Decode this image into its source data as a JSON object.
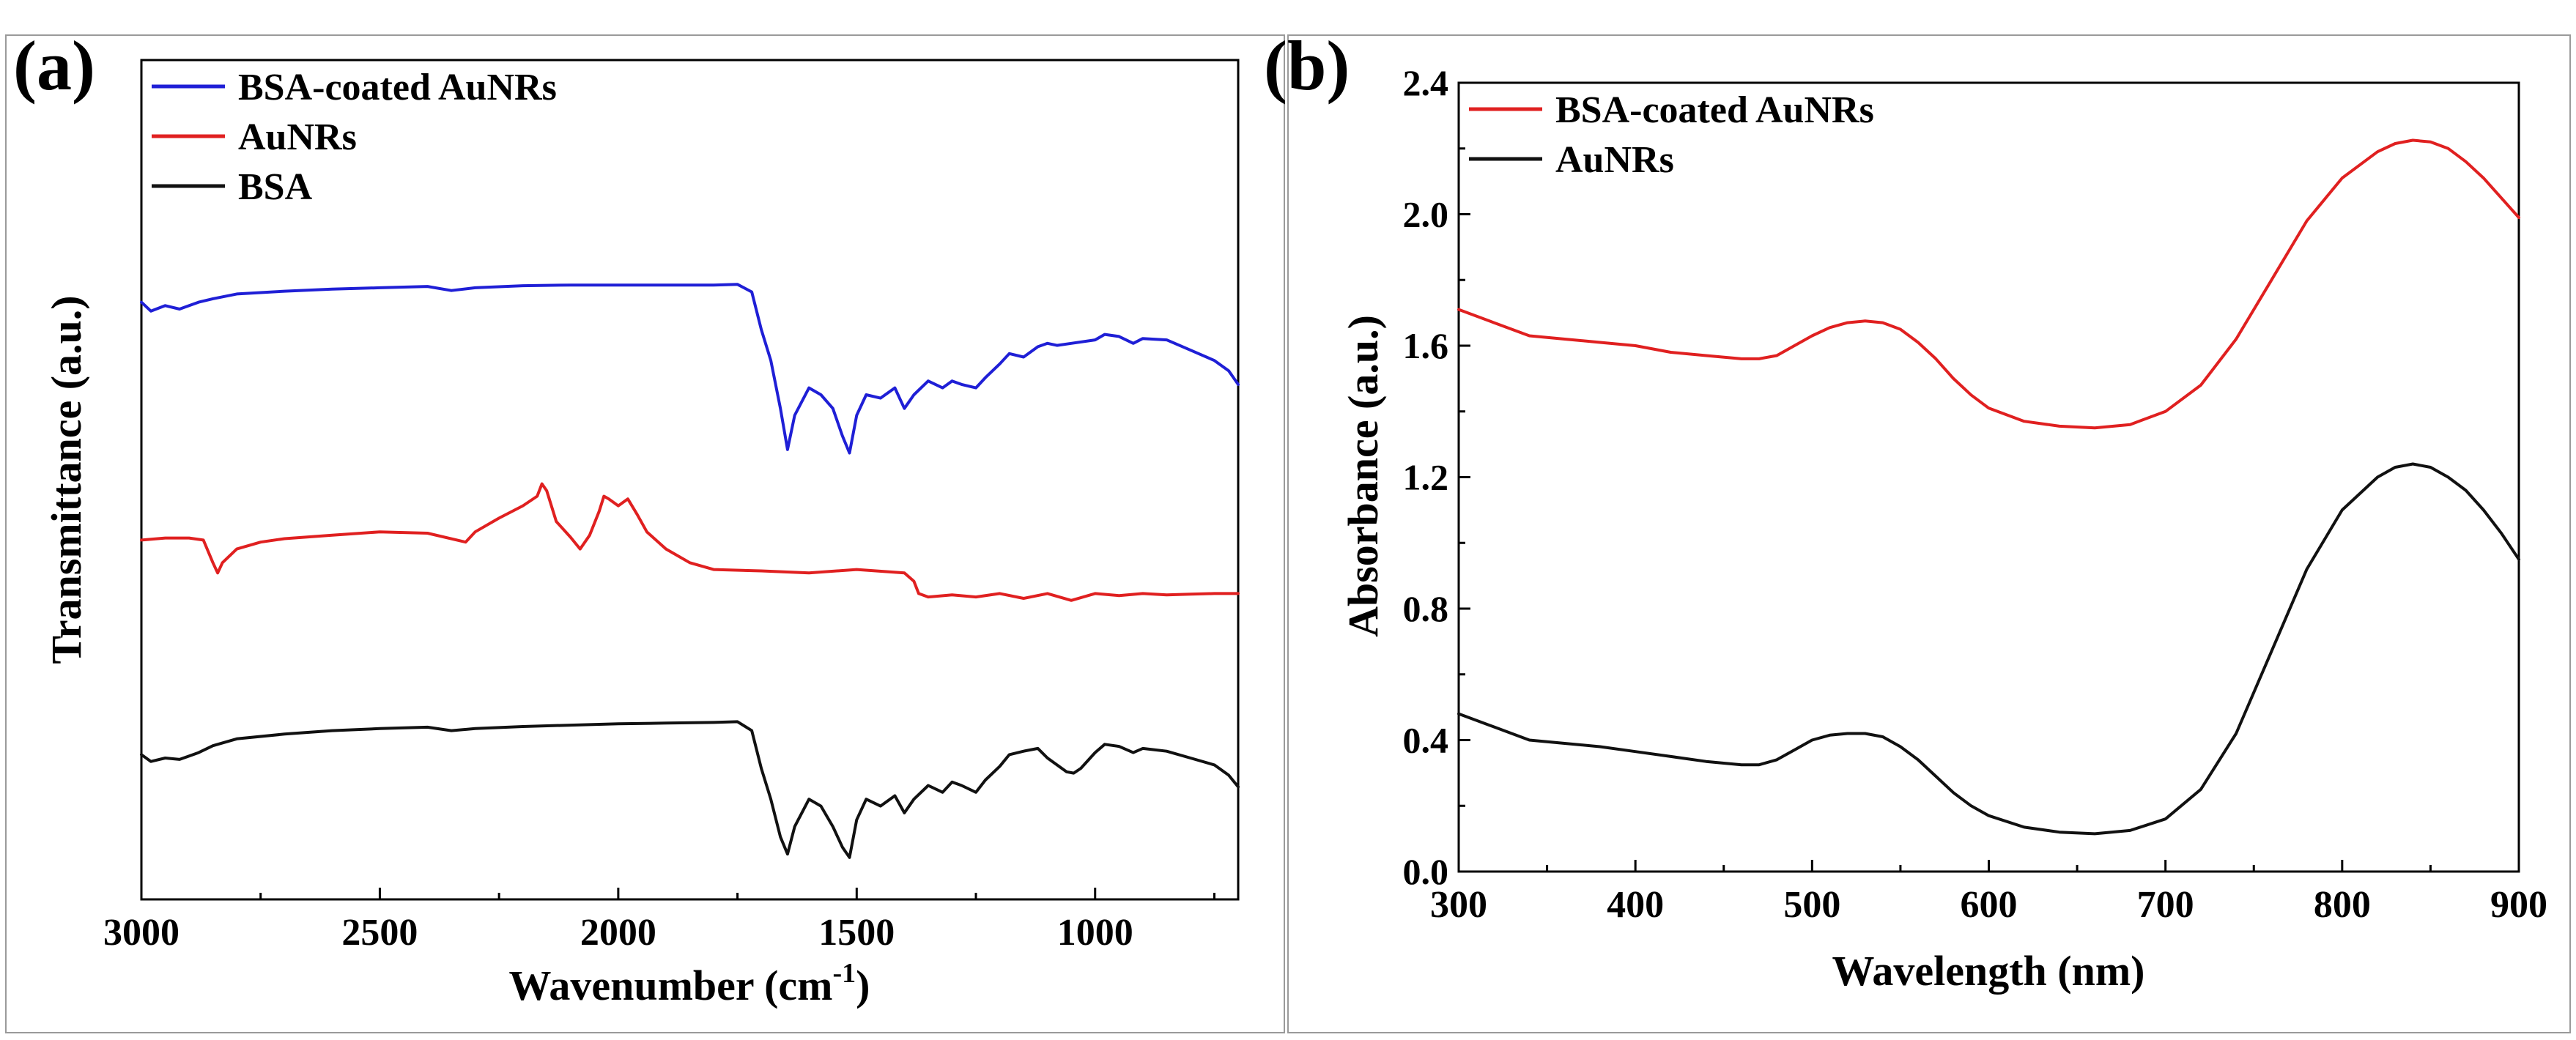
{
  "chart_data": [
    {
      "panel_label": "(a)",
      "type": "line",
      "title": "",
      "xlabel": "Wavenumber (cm",
      "xlabel_sup": "-1",
      "xlabel_end": ")",
      "ylabel": "Transmittance (a.u.)",
      "xlim": [
        3000,
        700
      ],
      "ylim": [
        0,
        1
      ],
      "x_reversed": true,
      "y_ticks_shown": false,
      "xticks": [
        "3000",
        "2500",
        "2000",
        "1500",
        "1000"
      ],
      "xtick_values": [
        3000,
        2500,
        2000,
        1500,
        1000
      ],
      "legend_position": "top-left",
      "legend": [
        "BSA-coated AuNRs",
        "AuNRs",
        "BSA"
      ],
      "series": [
        {
          "name": "BSA-coated AuNRs",
          "color": "#1f1fd6",
          "x": [
            3000,
            2980,
            2950,
            2920,
            2880,
            2850,
            2800,
            2700,
            2600,
            2500,
            2400,
            2350,
            2300,
            2200,
            2100,
            2000,
            1900,
            1800,
            1750,
            1720,
            1700,
            1680,
            1660,
            1645,
            1630,
            1600,
            1575,
            1550,
            1530,
            1515,
            1500,
            1480,
            1450,
            1420,
            1400,
            1380,
            1350,
            1320,
            1300,
            1280,
            1250,
            1230,
            1200,
            1180,
            1150,
            1120,
            1100,
            1080,
            1050,
            1000,
            980,
            950,
            920,
            900,
            850,
            800,
            750,
            720,
            700
          ],
          "y": [
            0.775,
            0.762,
            0.77,
            0.765,
            0.775,
            0.78,
            0.787,
            0.791,
            0.794,
            0.796,
            0.798,
            0.792,
            0.796,
            0.799,
            0.8,
            0.8,
            0.8,
            0.8,
            0.801,
            0.79,
            0.735,
            0.69,
            0.62,
            0.56,
            0.61,
            0.65,
            0.64,
            0.62,
            0.58,
            0.555,
            0.61,
            0.64,
            0.635,
            0.65,
            0.62,
            0.64,
            0.66,
            0.65,
            0.66,
            0.655,
            0.65,
            0.665,
            0.685,
            0.7,
            0.695,
            0.71,
            0.715,
            0.712,
            0.715,
            0.72,
            0.728,
            0.725,
            0.715,
            0.722,
            0.72,
            0.705,
            0.69,
            0.675,
            0.655
          ]
        },
        {
          "name": "AuNRs",
          "color": "#e02020",
          "x": [
            3000,
            2950,
            2900,
            2870,
            2850,
            2840,
            2830,
            2800,
            2750,
            2700,
            2600,
            2500,
            2400,
            2320,
            2300,
            2250,
            2200,
            2170,
            2160,
            2150,
            2130,
            2100,
            2080,
            2060,
            2040,
            2030,
            2020,
            2000,
            1980,
            1960,
            1940,
            1900,
            1850,
            1800,
            1700,
            1600,
            1500,
            1400,
            1380,
            1370,
            1350,
            1300,
            1250,
            1200,
            1150,
            1100,
            1050,
            1000,
            950,
            900,
            850,
            800,
            750,
            700
          ],
          "y": [
            0.428,
            0.431,
            0.431,
            0.428,
            0.395,
            0.38,
            0.395,
            0.415,
            0.425,
            0.43,
            0.435,
            0.44,
            0.438,
            0.425,
            0.44,
            0.46,
            0.478,
            0.492,
            0.51,
            0.5,
            0.455,
            0.432,
            0.415,
            0.435,
            0.47,
            0.492,
            0.488,
            0.478,
            0.488,
            0.465,
            0.44,
            0.415,
            0.395,
            0.385,
            0.383,
            0.38,
            0.385,
            0.38,
            0.368,
            0.35,
            0.345,
            0.348,
            0.345,
            0.35,
            0.343,
            0.35,
            0.34,
            0.35,
            0.347,
            0.35,
            0.348,
            0.349,
            0.35,
            0.35
          ]
        },
        {
          "name": "BSA",
          "color": "#111111",
          "x": [
            3000,
            2980,
            2950,
            2920,
            2880,
            2850,
            2800,
            2700,
            2600,
            2500,
            2400,
            2350,
            2300,
            2200,
            2100,
            2000,
            1900,
            1800,
            1750,
            1720,
            1700,
            1680,
            1660,
            1645,
            1630,
            1600,
            1575,
            1550,
            1530,
            1515,
            1500,
            1480,
            1450,
            1420,
            1400,
            1380,
            1350,
            1320,
            1300,
            1280,
            1250,
            1230,
            1200,
            1180,
            1150,
            1120,
            1100,
            1080,
            1060,
            1045,
            1030,
            1000,
            980,
            950,
            920,
            900,
            850,
            800,
            750,
            720,
            700
          ],
          "y": [
            0.115,
            0.105,
            0.11,
            0.108,
            0.118,
            0.128,
            0.138,
            0.145,
            0.15,
            0.153,
            0.155,
            0.15,
            0.153,
            0.156,
            0.158,
            0.16,
            0.161,
            0.162,
            0.163,
            0.15,
            0.095,
            0.05,
            -0.005,
            -0.03,
            0.01,
            0.05,
            0.04,
            0.01,
            -0.02,
            -0.035,
            0.02,
            0.05,
            0.04,
            0.055,
            0.03,
            0.05,
            0.07,
            0.06,
            0.075,
            0.07,
            0.06,
            0.078,
            0.098,
            0.115,
            0.12,
            0.124,
            0.11,
            0.1,
            0.09,
            0.088,
            0.095,
            0.118,
            0.13,
            0.127,
            0.118,
            0.124,
            0.12,
            0.11,
            0.1,
            0.085,
            0.068
          ]
        }
      ]
    },
    {
      "panel_label": "(b)",
      "type": "line",
      "title": "",
      "xlabel": "Wavelength (nm)",
      "ylabel": "Absorbance (a.u.)",
      "xlim": [
        300,
        900
      ],
      "ylim": [
        0.0,
        2.4
      ],
      "xticks": [
        "300",
        "400",
        "500",
        "600",
        "700",
        "800",
        "900"
      ],
      "xtick_values": [
        300,
        400,
        500,
        600,
        700,
        800,
        900
      ],
      "yticks": [
        "0.0",
        "0.4",
        "0.8",
        "1.2",
        "1.6",
        "2.0",
        "2.4"
      ],
      "ytick_values": [
        0.0,
        0.4,
        0.8,
        1.2,
        1.6,
        2.0,
        2.4
      ],
      "legend_position": "top-left",
      "legend": [
        "BSA-coated AuNRs",
        "AuNRs"
      ],
      "series": [
        {
          "name": "BSA-coated AuNRs",
          "color": "#e02020",
          "x": [
            300,
            320,
            340,
            360,
            380,
            400,
            420,
            440,
            460,
            470,
            480,
            490,
            500,
            510,
            520,
            530,
            540,
            550,
            560,
            570,
            580,
            590,
            600,
            620,
            640,
            660,
            680,
            700,
            720,
            740,
            760,
            780,
            800,
            820,
            830,
            840,
            850,
            860,
            870,
            880,
            890,
            900
          ],
          "y": [
            1.71,
            1.67,
            1.63,
            1.62,
            1.61,
            1.6,
            1.58,
            1.57,
            1.56,
            1.56,
            1.57,
            1.6,
            1.63,
            1.655,
            1.67,
            1.675,
            1.67,
            1.65,
            1.61,
            1.56,
            1.5,
            1.45,
            1.41,
            1.37,
            1.355,
            1.35,
            1.36,
            1.4,
            1.48,
            1.62,
            1.8,
            1.98,
            2.11,
            2.19,
            2.215,
            2.225,
            2.22,
            2.2,
            2.16,
            2.11,
            2.05,
            1.99
          ]
        },
        {
          "name": "AuNRs",
          "color": "#111111",
          "x": [
            300,
            320,
            340,
            360,
            380,
            400,
            420,
            440,
            460,
            470,
            480,
            490,
            500,
            510,
            520,
            530,
            540,
            550,
            560,
            570,
            580,
            590,
            600,
            620,
            640,
            660,
            680,
            700,
            720,
            740,
            760,
            780,
            800,
            820,
            830,
            840,
            850,
            860,
            870,
            880,
            890,
            900
          ],
          "y": [
            0.48,
            0.44,
            0.4,
            0.39,
            0.38,
            0.365,
            0.35,
            0.335,
            0.325,
            0.325,
            0.34,
            0.37,
            0.4,
            0.415,
            0.42,
            0.42,
            0.41,
            0.38,
            0.34,
            0.29,
            0.24,
            0.2,
            0.17,
            0.135,
            0.12,
            0.115,
            0.125,
            0.16,
            0.25,
            0.42,
            0.67,
            0.92,
            1.1,
            1.2,
            1.23,
            1.24,
            1.23,
            1.2,
            1.16,
            1.1,
            1.03,
            0.95
          ]
        }
      ]
    }
  ]
}
